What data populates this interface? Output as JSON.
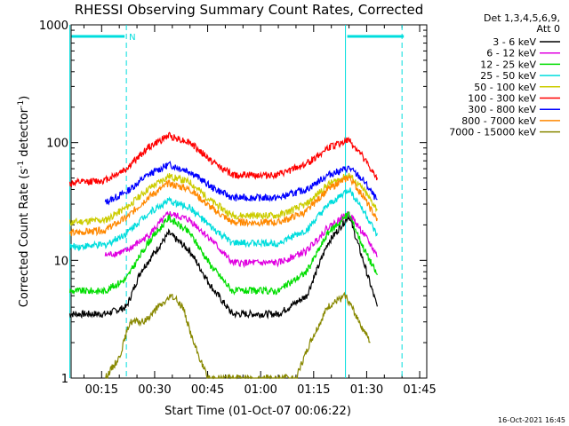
{
  "chart_data": {
    "type": "line",
    "title": "RHESSI Observing Summary Count Rates, Corrected",
    "xlabel": "Start Time (01-Oct-07 00:06:22)",
    "ylabel": "Corrected Count Rate (s",
    "ylabel_sup1": "-1",
    "ylabel_mid": " detector",
    "ylabel_sup2": "-1",
    "ylabel_end": ")",
    "yscale": "log",
    "ylim": [
      1,
      1000
    ],
    "y_ticks": [
      {
        "value": 1,
        "label": "1"
      },
      {
        "value": 10,
        "label": "10"
      },
      {
        "value": 100,
        "label": "100"
      },
      {
        "value": 1000,
        "label": "1000"
      }
    ],
    "xlim": [
      "00:06:22",
      "01:47:00"
    ],
    "x_ticks": [
      "00:15",
      "00:30",
      "00:45",
      "01:00",
      "01:15",
      "01:30",
      "01:45"
    ],
    "legend_header": [
      "Det 1,3,4,5,6,9,",
      "Att 0"
    ],
    "legend_position": "right",
    "series": [
      {
        "name": "3 - 6 keV",
        "color": "#000000",
        "x": [
          "00:06",
          "00:16",
          "00:22",
          "00:26",
          "00:34",
          "00:40",
          "00:46",
          "00:52",
          "01:05",
          "01:13",
          "01:19",
          "01:25",
          "01:29",
          "01:33"
        ],
        "y": [
          3.5,
          3.5,
          4,
          8,
          17,
          12,
          6,
          3.5,
          3.5,
          5,
          14,
          24,
          10,
          4
        ]
      },
      {
        "name": "6 - 12 keV",
        "color": "#e000e0",
        "x": [
          "00:16",
          "00:22",
          "00:28",
          "00:34",
          "00:40",
          "00:46",
          "00:52",
          "01:05",
          "01:13",
          "01:19",
          "01:25",
          "01:29",
          "01:33"
        ],
        "y": [
          11,
          12,
          16,
          25,
          22,
          15,
          9.5,
          9.5,
          12,
          19,
          25,
          17,
          11
        ]
      },
      {
        "name": "12 - 25 keV",
        "color": "#00dd00",
        "x": [
          "00:06",
          "00:16",
          "00:22",
          "00:28",
          "00:34",
          "00:40",
          "00:46",
          "00:52",
          "01:05",
          "01:13",
          "01:19",
          "01:25",
          "01:29",
          "01:33"
        ],
        "y": [
          5.5,
          5.5,
          7,
          14,
          23,
          17,
          9,
          5.5,
          5.5,
          8,
          17,
          25,
          13,
          7.5
        ]
      },
      {
        "name": "25 - 50 keV",
        "color": "#00dddd",
        "x": [
          "00:06",
          "00:16",
          "00:22",
          "00:28",
          "00:34",
          "00:40",
          "00:46",
          "00:52",
          "01:05",
          "01:13",
          "01:19",
          "01:25",
          "01:29",
          "01:33"
        ],
        "y": [
          13,
          13.5,
          17,
          25,
          32,
          28,
          19,
          14,
          14,
          18,
          29,
          40,
          27,
          16
        ]
      },
      {
        "name": "50 - 100 keV",
        "color": "#cccc00",
        "x": [
          "00:06",
          "00:16",
          "00:22",
          "00:28",
          "00:34",
          "00:40",
          "00:46",
          "00:52",
          "01:05",
          "01:13",
          "01:19",
          "01:25",
          "01:29",
          "01:33"
        ],
        "y": [
          21,
          22,
          28,
          40,
          52,
          46,
          32,
          24,
          24,
          30,
          44,
          53,
          40,
          27
        ]
      },
      {
        "name": "100 - 300 keV",
        "color": "#ff0000",
        "x": [
          "00:06",
          "00:16",
          "00:22",
          "00:28",
          "00:34",
          "00:40",
          "00:46",
          "00:52",
          "01:05",
          "01:13",
          "01:19",
          "01:25",
          "01:29",
          "01:33"
        ],
        "y": [
          45,
          48,
          60,
          90,
          115,
          100,
          70,
          53,
          53,
          66,
          90,
          105,
          75,
          48
        ]
      },
      {
        "name": "300 - 800 keV",
        "color": "#0000ff",
        "x": [
          "00:16",
          "00:22",
          "00:28",
          "00:34",
          "00:40",
          "00:46",
          "00:52",
          "01:05",
          "01:13",
          "01:19",
          "01:25",
          "01:29",
          "01:33"
        ],
        "y": [
          31,
          38,
          53,
          65,
          57,
          42,
          34,
          34,
          40,
          53,
          61,
          48,
          32
        ]
      },
      {
        "name": "800 - 7000 keV",
        "color": "#ff8800",
        "x": [
          "00:06",
          "00:16",
          "00:22",
          "00:28",
          "00:34",
          "00:40",
          "00:46",
          "00:52",
          "01:05",
          "01:13",
          "01:19",
          "01:25",
          "01:29",
          "01:33"
        ],
        "y": [
          17,
          18,
          23,
          34,
          45,
          40,
          28,
          21,
          21,
          26,
          40,
          51,
          35,
          22
        ]
      },
      {
        "name": "7000 - 15000 keV",
        "color": "#888800",
        "x": [
          "00:16",
          "00:20",
          "00:23",
          "00:27",
          "00:31",
          "00:35",
          "00:38",
          "00:41",
          "00:45",
          "01:10",
          "01:14",
          "01:19",
          "01:24",
          "01:28",
          "01:31"
        ],
        "y": [
          1,
          1.5,
          3,
          3,
          4,
          5,
          4,
          2,
          1,
          1,
          2,
          4,
          5,
          3,
          2
        ]
      }
    ],
    "markers": [
      {
        "type": "shaded",
        "label": "",
        "x0": "00:06",
        "x1": "00:22"
      },
      {
        "type": "dashed",
        "label": "N",
        "x": "00:22"
      },
      {
        "type": "solid",
        "label": "",
        "x": "01:24"
      },
      {
        "type": "dashed",
        "label": "",
        "x": "01:40"
      }
    ],
    "timestamp": "16-Oct-2021 16:45"
  }
}
